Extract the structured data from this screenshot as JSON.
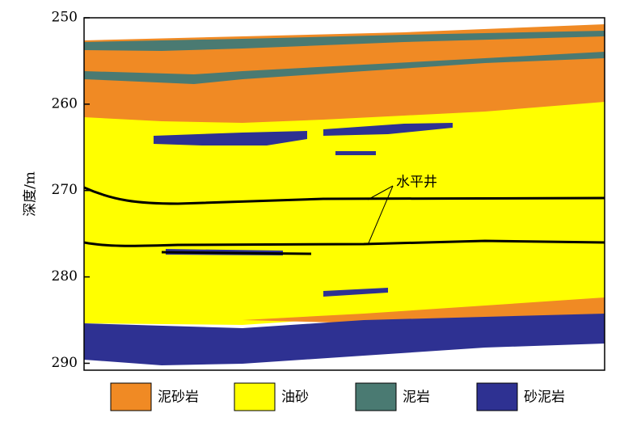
{
  "chart_data": {
    "type": "section",
    "y_label": "深度/m",
    "ylim": [
      250,
      290.8
    ],
    "yticks": [
      250,
      260,
      270,
      280,
      290
    ],
    "annotation": "水平井",
    "legend": [
      {
        "name": "泥砂岩",
        "color": "#f08a24"
      },
      {
        "name": "油砂",
        "color": "#ffff00"
      },
      {
        "name": "泥岩",
        "color": "#4a7a72"
      },
      {
        "name": "砂泥岩",
        "color": "#2e3192"
      }
    ]
  }
}
